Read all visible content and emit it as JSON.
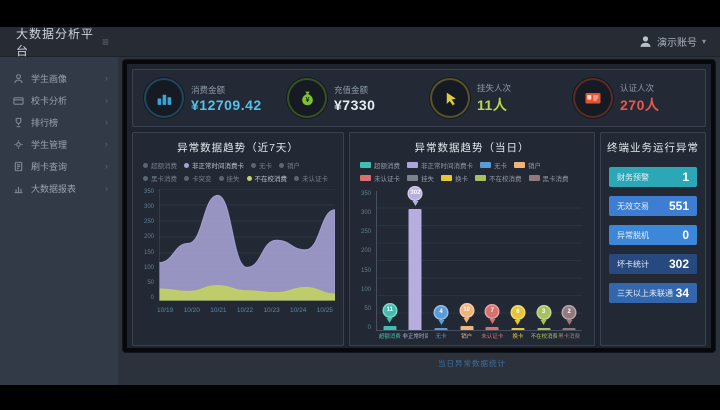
{
  "app": {
    "title": "大数据分析平台",
    "user": "演示账号",
    "menu_icon": "≡",
    "caret": "▾"
  },
  "sidebar": {
    "chevron": "›",
    "items": [
      {
        "label": "学生画像",
        "icon": "user"
      },
      {
        "label": "校卡分析",
        "icon": "card"
      },
      {
        "label": "排行榜",
        "icon": "trophy"
      },
      {
        "label": "学生管理",
        "icon": "gear"
      },
      {
        "label": "刷卡查询",
        "icon": "doc"
      },
      {
        "label": "大数据报表",
        "icon": "chart"
      }
    ]
  },
  "kpis": [
    {
      "label": "消费金额",
      "value": "¥12709.42",
      "value_color": "#56c1e8",
      "accent": "#3aa4d8",
      "icon": "coins-icon"
    },
    {
      "label": "充值金额",
      "value": "¥7330",
      "value_color": "#e6edf2",
      "accent": "#7cc42e",
      "icon": "moneybag-icon"
    },
    {
      "label": "挂失人次",
      "value": "11人",
      "value_color": "#b9d84c",
      "accent": "#e0c93e",
      "icon": "click-icon"
    },
    {
      "label": "认证人次",
      "value": "270人",
      "value_color": "#e6594c",
      "accent": "#e05436",
      "icon": "idcard-icon"
    }
  ],
  "chart_data": [
    {
      "type": "area",
      "title": "异常数据趋势（近7天）",
      "x": [
        "10/19",
        "10/20",
        "10/21",
        "10/22",
        "10/23",
        "10/24",
        "10/25"
      ],
      "ylim": [
        0,
        350
      ],
      "ytick_step": 50,
      "grid": true,
      "legend_position": "top",
      "legend": [
        {
          "label": "超额消费",
          "active": false
        },
        {
          "label": "非正常时间消费卡",
          "active": true,
          "color": "#a9a3d6"
        },
        {
          "label": "无卡",
          "active": false
        },
        {
          "label": "销户",
          "active": false
        },
        {
          "label": "黑卡消费",
          "active": false
        },
        {
          "label": "卡突变",
          "active": false
        },
        {
          "label": "挂失",
          "active": false
        },
        {
          "label": "不在校消费",
          "active": true,
          "color": "#c3d460"
        },
        {
          "label": "未认证卡",
          "active": false
        }
      ],
      "series": [
        {
          "name": "非正常时间消费卡",
          "color": "#a9a3d6",
          "values": [
            120,
            180,
            330,
            105,
            190,
            160,
            285
          ]
        },
        {
          "name": "不在校消费",
          "color": "#c3d460",
          "values": [
            38,
            30,
            48,
            32,
            26,
            42,
            22
          ]
        }
      ]
    },
    {
      "type": "bar",
      "title": "异常数据趋势（当日）",
      "caption": "当日异常数据统计",
      "ylim": [
        0,
        350
      ],
      "ytick_step": 50,
      "grid": true,
      "legend": [
        {
          "label": "超额消费",
          "color": "#3fbfb0"
        },
        {
          "label": "非正常时间消费卡",
          "color": "#aaa4da"
        },
        {
          "label": "无卡",
          "color": "#5b9bd5"
        },
        {
          "label": "销户",
          "color": "#f0b37a"
        },
        {
          "label": "未认证卡",
          "color": "#d9706e"
        },
        {
          "label": "挂失",
          "color": "#7a8290"
        },
        {
          "label": "换卡",
          "color": "#e6c733"
        },
        {
          "label": "不在校消费",
          "color": "#a9c05e"
        },
        {
          "label": "黑卡消费",
          "color": "#93797c"
        }
      ],
      "categories": [
        "超额消费",
        "非正常时间消费卡",
        "无卡",
        "销户",
        "未认证卡",
        "换卡",
        "不在校消费",
        "黑卡消费"
      ],
      "values": [
        11,
        302,
        4,
        10,
        7,
        6,
        3,
        2
      ],
      "colors": [
        "#3fbfb0",
        "#b5aede",
        "#5b9bd5",
        "#f0b37a",
        "#d9706e",
        "#e6c733",
        "#a9c05e",
        "#93797c"
      ]
    }
  ],
  "right_panel": {
    "title": "终端业务运行异常",
    "rows": [
      {
        "label": "财务预警",
        "value": "1",
        "color": "#2ba7b5"
      },
      {
        "label": "无效交易",
        "value": "551",
        "color": "#3d7ed2"
      },
      {
        "label": "异常脱机",
        "value": "0",
        "color": "#3d87d8"
      },
      {
        "label": "坏卡统计",
        "value": "302",
        "color": "#27497f"
      },
      {
        "label": "三天以上未联通",
        "value": "34",
        "color": "#3366ad"
      }
    ]
  }
}
